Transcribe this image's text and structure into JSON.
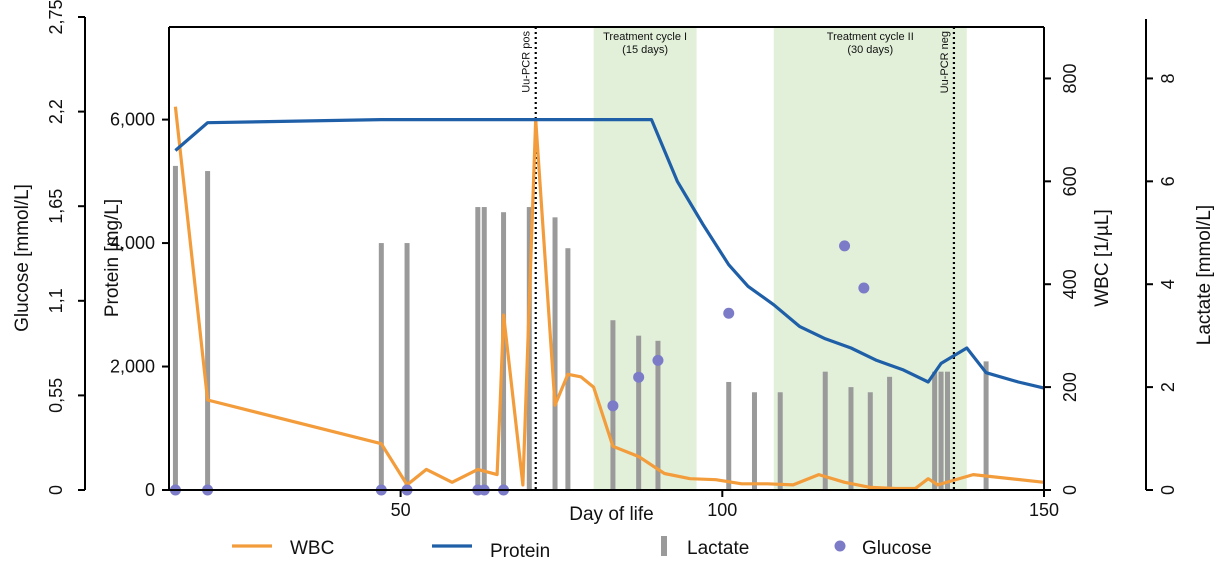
{
  "chart_data": {
    "type": "line",
    "xlabel": "Day of life",
    "xlim": [
      14,
      150
    ],
    "x_ticks": [
      "50",
      "100",
      "150"
    ],
    "x_tick_values": [
      50,
      100,
      150
    ],
    "axes": {
      "glucose": {
        "label": "Glucose [mmol/L]",
        "ylim": [
          0,
          2.75
        ],
        "ticks": [
          "0",
          "0,55",
          "1,1",
          "1,65",
          "2,2",
          "2,75"
        ],
        "tick_values": [
          0,
          0.55,
          1.1,
          1.65,
          2.2,
          2.75
        ]
      },
      "protein": {
        "label": "Protein [mg/L]",
        "ylim": [
          0,
          7500
        ],
        "ticks": [
          "0",
          "2,000",
          "4,000",
          "6,000"
        ],
        "tick_values": [
          0,
          2000,
          4000,
          6000
        ]
      },
      "wbc": {
        "label": "WBC [1/µL]",
        "ylim": [
          0,
          900
        ],
        "ticks": [
          "0",
          "200",
          "400",
          "600",
          "800"
        ],
        "tick_values": [
          0,
          200,
          400,
          600,
          800
        ]
      },
      "lactate": {
        "label": "Lactate [mmol/L]",
        "ylim": [
          0,
          9
        ],
        "ticks": [
          "0",
          "2",
          "4",
          "6",
          "8"
        ],
        "tick_values": [
          0,
          2,
          4,
          6,
          8
        ]
      }
    },
    "shaded_regions": [
      {
        "x": [
          80,
          96
        ],
        "label_lines": [
          "Treatment cycle I",
          "(15 days)"
        ],
        "color": "#e2f0d9"
      },
      {
        "x": [
          108,
          138
        ],
        "label_lines": [
          "Treatment cycle II",
          "(30 days)"
        ],
        "color": "#e2f0d9"
      }
    ],
    "vlines": [
      {
        "x": 71,
        "label": "Uu-PCR pos"
      },
      {
        "x": 136,
        "label": "Uu-PCR neg"
      }
    ],
    "series": [
      {
        "name": "WBC",
        "axis": "wbc",
        "kind": "line",
        "color": "#f39c3c",
        "x": [
          15,
          20,
          47,
          51,
          54,
          58,
          62,
          65,
          65.5,
          66,
          69,
          71,
          74,
          76,
          78,
          80,
          83,
          87,
          91,
          95,
          99,
          103,
          107,
          111,
          115,
          119,
          123,
          127,
          130,
          132,
          133.5,
          139,
          150
        ],
        "y": [
          745,
          175,
          90,
          10,
          40,
          15,
          40,
          30,
          175,
          340,
          10,
          720,
          165,
          225,
          220,
          200,
          85,
          65,
          32,
          22,
          20,
          12,
          12,
          10,
          30,
          15,
          5,
          3,
          3,
          22,
          10,
          30,
          15
        ]
      },
      {
        "name": "Protein",
        "axis": "protein",
        "kind": "line",
        "color": "#1f5fa8",
        "x": [
          15,
          20,
          47,
          89,
          93,
          97,
          101,
          104,
          108,
          112,
          116,
          120,
          124,
          128,
          132,
          134,
          138,
          141,
          146,
          150
        ],
        "y": [
          5500,
          5950,
          6000,
          6000,
          5000,
          4300,
          3650,
          3300,
          3000,
          2650,
          2450,
          2300,
          2100,
          1950,
          1750,
          2050,
          2300,
          1900,
          1750,
          1650
        ]
      },
      {
        "name": "Lactate",
        "axis": "lactate",
        "kind": "bar",
        "color": "#9a9a9a",
        "x": [
          15,
          20,
          47,
          51,
          62,
          63,
          66,
          70,
          74,
          76,
          83,
          87,
          90,
          101,
          105,
          109,
          116,
          120,
          123,
          126,
          133,
          134,
          135,
          141
        ],
        "y": [
          6.3,
          6.2,
          4.8,
          4.8,
          5.5,
          5.5,
          5.4,
          5.5,
          5.3,
          4.7,
          3.3,
          3.0,
          2.9,
          2.1,
          1.9,
          1.9,
          2.3,
          2.0,
          1.9,
          2.2,
          2.3,
          2.3,
          2.3,
          2.5
        ]
      },
      {
        "name": "Glucose",
        "axis": "glucose",
        "kind": "scatter",
        "color": "#7b7bc8",
        "x": [
          15,
          20,
          47,
          51,
          62,
          63,
          66,
          83,
          87,
          90,
          101,
          119,
          122
        ],
        "y": [
          0,
          0,
          0,
          0,
          0,
          0,
          0,
          0.5,
          0.67,
          0.77,
          1.05,
          1.45,
          1.2
        ]
      }
    ],
    "legend": [
      "WBC",
      "Protein",
      "Lactate",
      "Glucose"
    ],
    "legend_position": "bottom",
    "grid": false
  }
}
